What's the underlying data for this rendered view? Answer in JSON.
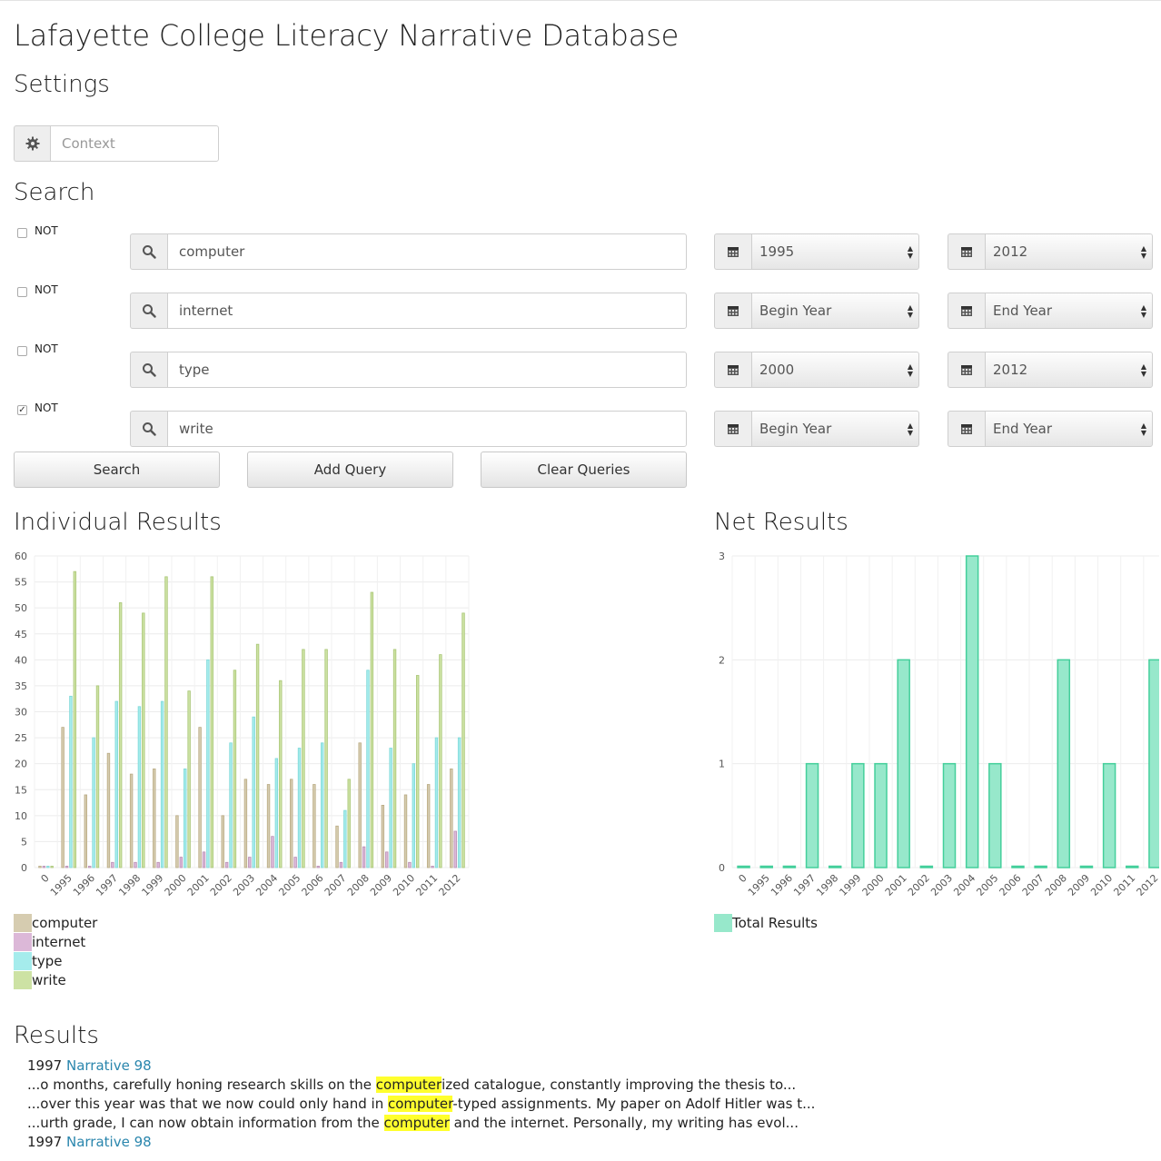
{
  "page": {
    "title": "Lafayette College Literacy Narrative Database",
    "settings_heading": "Settings",
    "search_heading": "Search",
    "individual_heading": "Individual Results",
    "net_heading": "Net Results",
    "results_heading": "Results"
  },
  "settings": {
    "context_placeholder": "Context",
    "icon": "gear-icon"
  },
  "queries": [
    {
      "not_label": "NOT",
      "not_checked": false,
      "term": "computer",
      "begin_year": "1995",
      "end_year": "2012"
    },
    {
      "not_label": "NOT",
      "not_checked": false,
      "term": "internet",
      "begin_year": "Begin Year",
      "end_year": "End Year"
    },
    {
      "not_label": "NOT",
      "not_checked": false,
      "term": "type",
      "begin_year": "2000",
      "end_year": "2012"
    },
    {
      "not_label": "NOT",
      "not_checked": true,
      "term": "write",
      "begin_year": "Begin Year",
      "end_year": "End Year"
    }
  ],
  "buttons": {
    "search": "Search",
    "add_query": "Add Query",
    "clear_queries": "Clear Queries"
  },
  "colors": {
    "computer": "#d6ccb0",
    "internet": "#dcb8d8",
    "type": "#a5ecec",
    "write": "#cde2a4",
    "total": "#97e8cb"
  },
  "chart_data": [
    {
      "type": "bar",
      "title": "Individual Results",
      "categories": [
        "0",
        "1995",
        "1996",
        "1997",
        "1998",
        "1999",
        "2000",
        "2001",
        "2002",
        "2003",
        "2004",
        "2005",
        "2006",
        "2007",
        "2008",
        "2009",
        "2010",
        "2011",
        "2012"
      ],
      "ylim": [
        0,
        60
      ],
      "yticks": [
        0,
        5,
        10,
        15,
        20,
        25,
        30,
        35,
        40,
        45,
        50,
        55,
        60
      ],
      "grid": true,
      "legend": "bottom-left",
      "series": [
        {
          "name": "computer",
          "values": [
            0,
            27,
            14,
            22,
            18,
            19,
            10,
            27,
            10,
            17,
            16,
            17,
            16,
            8,
            24,
            12,
            14,
            16,
            19
          ]
        },
        {
          "name": "internet",
          "values": [
            0,
            0,
            0,
            1,
            1,
            1,
            2,
            3,
            1,
            2,
            6,
            2,
            0,
            1,
            4,
            3,
            1,
            0,
            7
          ]
        },
        {
          "name": "type",
          "values": [
            0,
            33,
            25,
            32,
            31,
            32,
            19,
            40,
            24,
            29,
            21,
            23,
            24,
            11,
            38,
            23,
            20,
            25,
            25
          ]
        },
        {
          "name": "write",
          "values": [
            0,
            57,
            35,
            51,
            49,
            56,
            34,
            56,
            38,
            43,
            36,
            42,
            42,
            17,
            53,
            42,
            37,
            41,
            49
          ]
        }
      ]
    },
    {
      "type": "bar",
      "title": "Net Results",
      "categories": [
        "0",
        "1995",
        "1996",
        "1997",
        "1998",
        "1999",
        "2000",
        "2001",
        "2002",
        "2003",
        "2004",
        "2005",
        "2006",
        "2007",
        "2008",
        "2009",
        "2010",
        "2011",
        "2012"
      ],
      "ylim": [
        0,
        3
      ],
      "yticks": [
        0,
        1,
        2,
        3
      ],
      "grid": true,
      "legend": "bottom-left",
      "series": [
        {
          "name": "Total Results",
          "values": [
            0,
            0,
            0,
            1,
            0,
            1,
            1,
            2,
            0,
            1,
            3,
            1,
            0,
            0,
            2,
            0,
            1,
            0,
            2
          ]
        }
      ]
    }
  ],
  "results": [
    {
      "kind": "header",
      "year": "1997",
      "link": "Narrative 98"
    },
    {
      "kind": "snippet",
      "before": "...o months, carefully honing research skills on the ",
      "match": "computer",
      "after": "ized catalogue, constantly improving the thesis to..."
    },
    {
      "kind": "snippet",
      "before": "...over this year was that we now could only hand in ",
      "match": "computer",
      "after": "-typed assignments. My paper on Adolf Hitler was t..."
    },
    {
      "kind": "snippet",
      "before": "...urth grade, I can now obtain information from the ",
      "match": "computer",
      "after": " and the internet. Personally, my writing has evol..."
    },
    {
      "kind": "header",
      "year": "1997",
      "link": "Narrative 98"
    }
  ]
}
